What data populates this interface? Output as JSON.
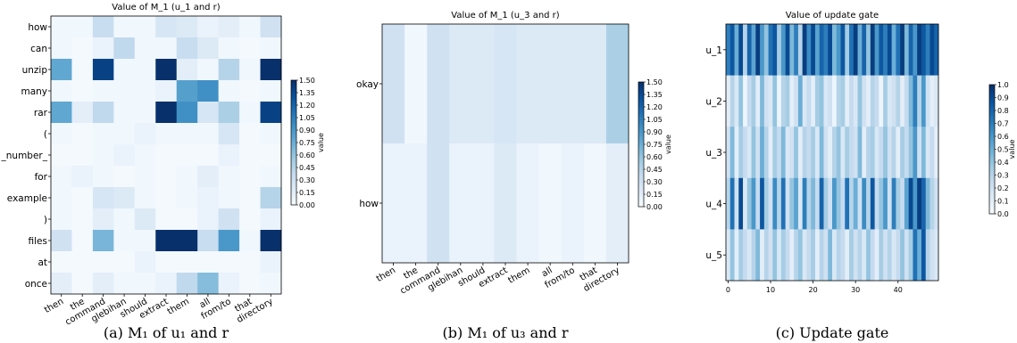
{
  "chart_data": [
    {
      "type": "heatmap",
      "title": "Value of M_1 (u_1 and r)",
      "caption": "(a) M₁ of u₁ and r",
      "rows": [
        "how",
        "can",
        "unzip",
        "many",
        "rar",
        "(",
        "_number_",
        "for",
        "example",
        ")",
        "files",
        "at",
        "once"
      ],
      "cols": [
        "then",
        "the",
        "command",
        "glebihan",
        "should",
        "extract",
        "them",
        "all",
        "from/to",
        "that",
        "directory"
      ],
      "colorbar": {
        "label": "value",
        "min": 0,
        "max": 1.5,
        "ticks": [
          "0.00",
          "0.15",
          "0.30",
          "0.45",
          "0.60",
          "0.75",
          "0.90",
          "1.05",
          "1.20",
          "1.35",
          "1.50"
        ]
      },
      "values": [
        [
          0.05,
          0.05,
          0.35,
          0.05,
          0.05,
          0.25,
          0.2,
          0.1,
          0.15,
          0.05,
          0.3
        ],
        [
          0.05,
          0.02,
          0.1,
          0.4,
          0.05,
          0.05,
          0.35,
          0.2,
          0.05,
          0.02,
          0.05
        ],
        [
          0.8,
          0.02,
          1.4,
          0.05,
          0.05,
          1.5,
          0.15,
          0.05,
          0.45,
          0.05,
          1.5
        ],
        [
          0.05,
          0.02,
          0.05,
          0.05,
          0.05,
          0.1,
          0.85,
          0.95,
          0.05,
          0.02,
          0.05
        ],
        [
          0.8,
          0.15,
          0.4,
          0.05,
          0.05,
          1.5,
          0.95,
          0.25,
          0.5,
          0.05,
          1.4
        ],
        [
          0.05,
          0.02,
          0.05,
          0.05,
          0.1,
          0.05,
          0.05,
          0.05,
          0.25,
          0.02,
          0.05
        ],
        [
          0.02,
          0.02,
          0.05,
          0.1,
          0.05,
          0.02,
          0.02,
          0.02,
          0.1,
          0.02,
          0.02
        ],
        [
          0.05,
          0.1,
          0.05,
          0.02,
          0.05,
          0.02,
          0.05,
          0.15,
          0.05,
          0.02,
          0.05
        ],
        [
          0.05,
          0.02,
          0.25,
          0.2,
          0.05,
          0.02,
          0.05,
          0.1,
          0.05,
          0.02,
          0.45
        ],
        [
          0.05,
          0.02,
          0.15,
          0.05,
          0.2,
          0.02,
          0.02,
          0.1,
          0.3,
          0.02,
          0.1
        ],
        [
          0.3,
          0.02,
          0.7,
          0.05,
          0.05,
          1.5,
          1.5,
          0.35,
          0.9,
          0.05,
          1.5
        ],
        [
          0.02,
          0.02,
          0.02,
          0.02,
          0.1,
          0.02,
          0.02,
          0.02,
          0.02,
          0.02,
          0.1
        ],
        [
          0.15,
          0.02,
          0.15,
          0.05,
          0.05,
          0.1,
          0.4,
          0.65,
          0.1,
          0.02,
          0.05
        ]
      ]
    },
    {
      "type": "heatmap",
      "title": "Value of M_1 (u_3 and r)",
      "caption": "(b) M₁ of u₃ and r",
      "rows": [
        "okay",
        "how"
      ],
      "cols": [
        "then",
        "the",
        "command",
        "glebihan",
        "should",
        "extract",
        "them",
        "all",
        "from/to",
        "that",
        "directory"
      ],
      "colorbar": {
        "label": "value",
        "min": 0,
        "max": 1.5,
        "ticks": [
          "0.00",
          "0.15",
          "0.30",
          "0.45",
          "0.60",
          "0.75",
          "0.90",
          "1.05",
          "1.20",
          "1.35",
          "1.50"
        ]
      },
      "values": [
        [
          0.3,
          0.05,
          0.3,
          0.2,
          0.2,
          0.25,
          0.2,
          0.2,
          0.2,
          0.2,
          0.5
        ],
        [
          0.1,
          0.1,
          0.3,
          0.1,
          0.1,
          0.2,
          0.1,
          0.05,
          0.1,
          0.05,
          0.15
        ]
      ]
    },
    {
      "type": "heatmap",
      "title": "Value of update gate",
      "caption": "(c) Update gate",
      "rows": [
        "u_1",
        "u_2",
        "u_3",
        "u_4",
        "u_5"
      ],
      "x_ticks": [
        "0",
        "10",
        "20",
        "30",
        "40"
      ],
      "colorbar": {
        "label": "value",
        "min": 0,
        "max": 1.0,
        "ticks": [
          "0.0",
          "0.1",
          "0.2",
          "0.3",
          "0.4",
          "0.5",
          "0.6",
          "0.7",
          "0.8",
          "0.9",
          "1.0"
        ]
      },
      "values": [
        [
          0.7,
          0.85,
          0.5,
          0.9,
          0.3,
          0.8,
          0.55,
          0.95,
          0.6,
          0.4,
          0.75,
          0.85,
          0.35,
          0.6,
          0.9,
          0.45,
          0.7,
          0.3,
          0.95,
          0.65,
          0.9,
          0.55,
          0.8,
          0.7,
          0.9,
          0.45,
          0.6,
          0.85,
          0.35,
          0.75,
          0.95,
          0.5,
          0.8,
          0.4,
          0.95,
          0.6,
          0.85,
          0.7,
          0.9,
          0.5,
          0.75,
          0.95,
          0.45,
          0.8,
          0.6,
          0.95,
          0.85,
          0.7,
          0.9,
          0.8
        ],
        [
          0.1,
          0.3,
          0.15,
          0.4,
          0.05,
          0.25,
          0.35,
          0.1,
          0.45,
          0.2,
          0.15,
          0.4,
          0.05,
          0.3,
          0.35,
          0.1,
          0.2,
          0.5,
          0.15,
          0.25,
          0.1,
          0.35,
          0.4,
          0.15,
          0.2,
          0.05,
          0.3,
          0.35,
          0.1,
          0.25,
          0.15,
          0.4,
          0.2,
          0.1,
          0.3,
          0.25,
          0.05,
          0.35,
          0.15,
          0.2,
          0.3,
          0.1,
          0.25,
          0.45,
          0.7,
          0.3,
          0.6,
          0.2,
          0.1,
          0.15
        ],
        [
          0.2,
          0.45,
          0.1,
          0.35,
          0.25,
          0.15,
          0.4,
          0.2,
          0.5,
          0.3,
          0.1,
          0.35,
          0.25,
          0.45,
          0.15,
          0.2,
          0.4,
          0.1,
          0.3,
          0.25,
          0.35,
          0.15,
          0.45,
          0.2,
          0.1,
          0.3,
          0.4,
          0.15,
          0.35,
          0.25,
          0.2,
          0.45,
          0.1,
          0.3,
          0.35,
          0.15,
          0.25,
          0.4,
          0.2,
          0.3,
          0.1,
          0.35,
          0.25,
          0.4,
          0.6,
          0.2,
          0.45,
          0.15,
          0.25,
          0.1
        ],
        [
          0.3,
          0.75,
          0.2,
          0.9,
          0.15,
          0.4,
          0.6,
          0.25,
          0.85,
          0.35,
          0.2,
          0.65,
          0.3,
          0.75,
          0.2,
          0.4,
          0.55,
          0.15,
          0.7,
          0.3,
          0.45,
          0.25,
          0.8,
          0.35,
          0.2,
          0.6,
          0.4,
          0.25,
          0.75,
          0.3,
          0.5,
          0.2,
          0.65,
          0.3,
          0.85,
          0.25,
          0.4,
          0.6,
          0.2,
          0.7,
          0.35,
          0.25,
          0.55,
          0.9,
          0.6,
          0.95,
          0.8,
          0.45,
          0.3,
          0.2
        ],
        [
          0.15,
          0.4,
          0.1,
          0.35,
          0.25,
          0.15,
          0.3,
          0.45,
          0.1,
          0.3,
          0.2,
          0.4,
          0.15,
          0.35,
          0.25,
          0.1,
          0.3,
          0.4,
          0.15,
          0.25,
          0.35,
          0.1,
          0.3,
          0.2,
          0.45,
          0.15,
          0.3,
          0.25,
          0.1,
          0.35,
          0.2,
          0.3,
          0.15,
          0.4,
          0.25,
          0.1,
          0.35,
          0.2,
          0.3,
          0.15,
          0.25,
          0.4,
          0.2,
          0.35,
          0.75,
          0.5,
          0.85,
          0.3,
          0.2,
          0.15
        ]
      ]
    }
  ]
}
